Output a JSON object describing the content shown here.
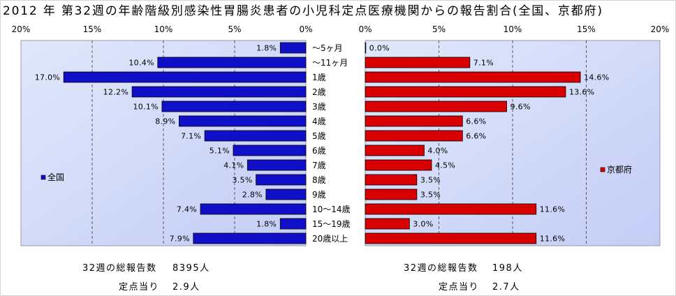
{
  "chart_data": {
    "type": "bar",
    "horizontal": true,
    "title": "2012 年 第32週の年齢階級別感染性胃腸炎患者の小児科定点医療機関からの報告割合(全国、京都府)",
    "categories": [
      "～5ヶ月",
      "～11ヶ月",
      "1歳",
      "2歳",
      "3歳",
      "4歳",
      "5歳",
      "6歳",
      "7歳",
      "8歳",
      "9歳",
      "10～14歳",
      "15～19歳",
      "20歳以上"
    ],
    "xlim": [
      0,
      20
    ],
    "xticks": [
      0,
      5,
      10,
      15,
      20
    ],
    "xtick_labels": [
      "0%",
      "5%",
      "10%",
      "15%",
      "20%"
    ],
    "grid": true,
    "series": [
      {
        "name": "全国",
        "reversed": true,
        "legend": "left",
        "color": "#1010c8",
        "values": [
          1.8,
          10.4,
          17.0,
          12.2,
          10.1,
          8.9,
          7.1,
          5.1,
          4.1,
          3.5,
          2.8,
          7.4,
          1.8,
          7.9
        ],
        "labels": [
          "1.8%",
          "10.4%",
          "17.0%",
          "12.2%",
          "10.1%",
          "8.9%",
          "7.1%",
          "5.1%",
          "4.1%",
          "3.5%",
          "2.8%",
          "7.4%",
          "1.8%",
          "7.9%"
        ]
      },
      {
        "name": "京都府",
        "reversed": false,
        "legend": "right",
        "color": "#d80000",
        "values": [
          0.0,
          7.1,
          14.6,
          13.6,
          9.6,
          6.6,
          6.6,
          4.0,
          4.5,
          3.5,
          3.5,
          11.6,
          3.0,
          11.6
        ],
        "labels": [
          "0.0%",
          "7.1%",
          "14.6%",
          "13.6%",
          "9.6%",
          "6.6%",
          "6.6%",
          "4.0%",
          "4.5%",
          "3.5%",
          "3.5%",
          "11.6%",
          "3.0%",
          "11.6%"
        ]
      }
    ]
  },
  "summary": [
    {
      "total_label": "32週の総報告数",
      "total_value": "8395人",
      "per_site_label": "定点当り",
      "per_site_value": "2.9人"
    },
    {
      "total_label": "32週の総報告数",
      "total_value": "198人",
      "per_site_label": "定点当り",
      "per_site_value": "2.7人"
    }
  ]
}
